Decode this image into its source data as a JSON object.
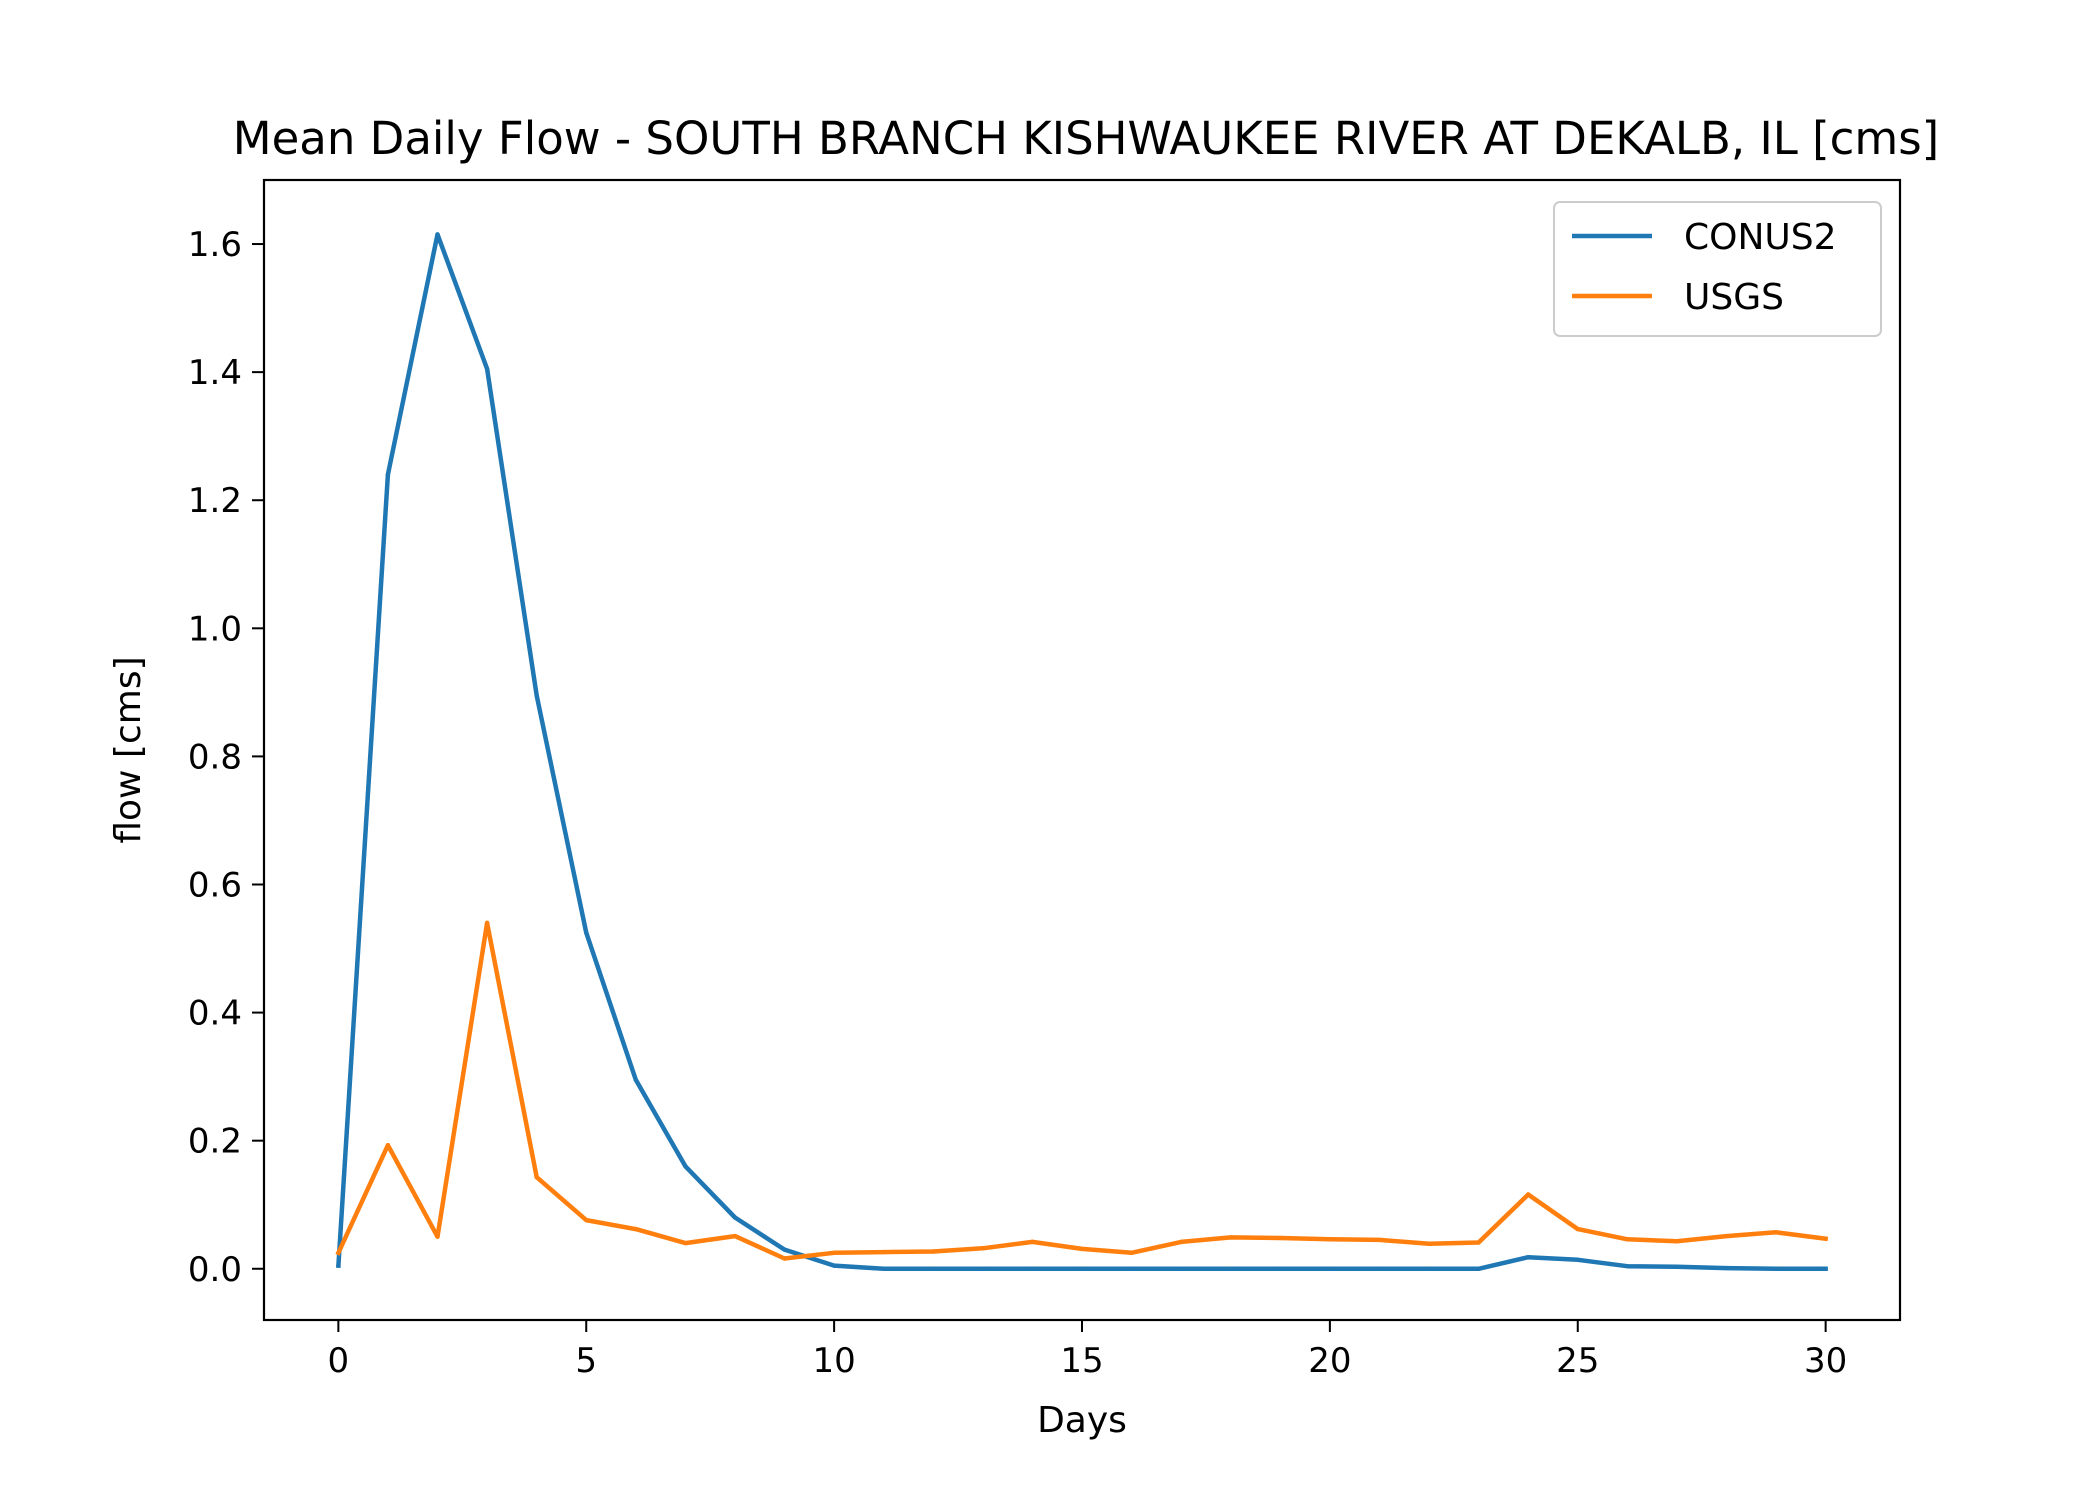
{
  "chart_data": {
    "type": "line",
    "title": "Mean Daily Flow - SOUTH BRANCH KISHWAUKEE RIVER AT DEKALB, IL [cms]",
    "xlabel": "Days",
    "ylabel": "flow [cms]",
    "xlim": [
      -1.5,
      31.5
    ],
    "ylim": [
      -0.08,
      1.7
    ],
    "xticks": [
      0,
      5,
      10,
      15,
      20,
      25,
      30
    ],
    "xtick_labels": [
      "0",
      "5",
      "10",
      "15",
      "20",
      "25",
      "30"
    ],
    "yticks": [
      0.0,
      0.2,
      0.4,
      0.6,
      0.8,
      1.0,
      1.2,
      1.4,
      1.6
    ],
    "ytick_labels": [
      "0.0",
      "0.2",
      "0.4",
      "0.6",
      "0.8",
      "1.0",
      "1.2",
      "1.4",
      "1.6"
    ],
    "grid": false,
    "legend_position": "top-right",
    "x": [
      0,
      1,
      2,
      3,
      4,
      5,
      6,
      7,
      8,
      9,
      10,
      11,
      12,
      13,
      14,
      15,
      16,
      17,
      18,
      19,
      20,
      21,
      22,
      23,
      24,
      25,
      26,
      27,
      28,
      29,
      30
    ],
    "series": [
      {
        "name": "CONUS2",
        "color": "#1f77b4",
        "values": [
          0.005,
          1.24,
          1.615,
          1.405,
          0.895,
          0.525,
          0.295,
          0.16,
          0.08,
          0.03,
          0.005,
          0.0,
          0.0,
          0.0,
          0.0,
          0.0,
          0.0,
          0.0,
          0.0,
          0.0,
          0.0,
          0.0,
          0.0,
          0.0,
          0.018,
          0.014,
          0.004,
          0.003,
          0.001,
          0.0,
          0.0
        ]
      },
      {
        "name": "USGS",
        "color": "#ff7f0e",
        "values": [
          0.025,
          0.193,
          0.05,
          0.54,
          0.143,
          0.076,
          0.062,
          0.04,
          0.051,
          0.016,
          0.025,
          0.026,
          0.027,
          0.032,
          0.042,
          0.031,
          0.025,
          0.042,
          0.049,
          0.048,
          0.046,
          0.045,
          0.039,
          0.041,
          0.116,
          0.062,
          0.046,
          0.043,
          0.051,
          0.057,
          0.047
        ]
      }
    ]
  }
}
